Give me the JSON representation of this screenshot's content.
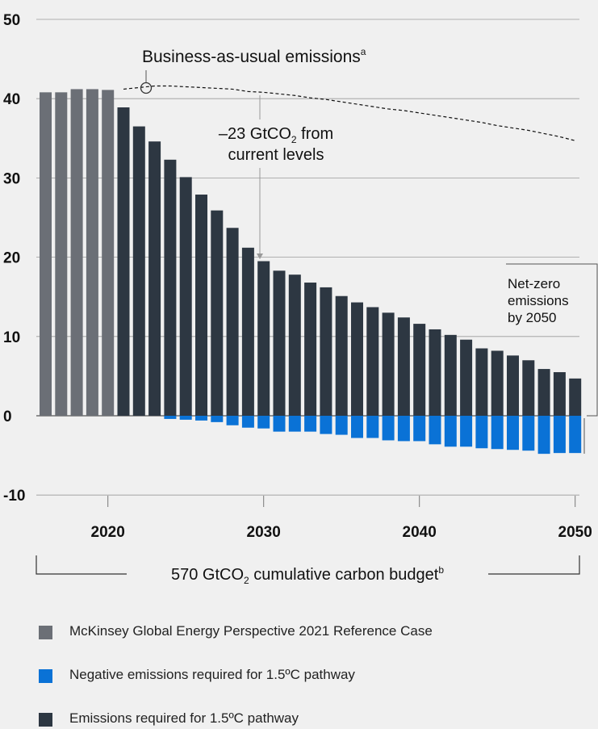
{
  "chart_data": {
    "type": "bar",
    "x_start": 2016,
    "years": [
      2016,
      2017,
      2018,
      2019,
      2020,
      2021,
      2022,
      2023,
      2024,
      2025,
      2026,
      2027,
      2028,
      2029,
      2030,
      2031,
      2032,
      2033,
      2034,
      2035,
      2036,
      2037,
      2038,
      2039,
      2040,
      2041,
      2042,
      2043,
      2044,
      2045,
      2046,
      2047,
      2048,
      2049,
      2050
    ],
    "series": [
      {
        "name": "McKinsey Global Energy Perspective 2021 Reference Case",
        "key": "reference",
        "values": [
          40.8,
          40.8,
          41.2,
          41.2,
          41.1,
          null,
          null,
          null,
          null,
          null,
          null,
          null,
          null,
          null,
          null,
          null,
          null,
          null,
          null,
          null,
          null,
          null,
          null,
          null,
          null,
          null,
          null,
          null,
          null,
          null,
          null,
          null,
          null,
          null,
          null
        ]
      },
      {
        "name": "Emissions required for 1.5ºC pathway",
        "key": "positive",
        "values": [
          null,
          null,
          null,
          null,
          null,
          38.9,
          36.5,
          34.6,
          32.3,
          30.1,
          27.9,
          25.9,
          23.7,
          21.2,
          19.5,
          18.3,
          17.8,
          16.8,
          16.2,
          15.1,
          14.3,
          13.7,
          13.0,
          12.4,
          11.6,
          10.9,
          10.2,
          9.6,
          8.5,
          8.2,
          7.6,
          7.0,
          5.9,
          5.5,
          4.7
        ]
      },
      {
        "name": "Negative emissions required for 1.5ºC pathway",
        "key": "negative",
        "values": [
          null,
          null,
          null,
          null,
          null,
          null,
          null,
          null,
          -0.4,
          -0.5,
          -0.6,
          -0.8,
          -1.2,
          -1.5,
          -1.6,
          -2.0,
          -2.0,
          -2.0,
          -2.3,
          -2.4,
          -2.8,
          -2.8,
          -3.1,
          -3.2,
          -3.2,
          -3.6,
          -3.9,
          -3.9,
          -4.1,
          -4.2,
          -4.3,
          -4.4,
          -4.8,
          -4.7,
          -4.7
        ]
      }
    ],
    "bau_line": {
      "x": [
        2021,
        2022,
        2023,
        2024,
        2025,
        2026,
        2027,
        2028,
        2029,
        2030,
        2031,
        2032,
        2033,
        2034,
        2035,
        2036,
        2037,
        2038,
        2039,
        2040,
        2041,
        2042,
        2043,
        2044,
        2045,
        2046,
        2047,
        2048,
        2049,
        2050
      ],
      "y": [
        41.2,
        41.4,
        41.6,
        41.6,
        41.5,
        41.4,
        41.3,
        41.2,
        40.9,
        40.8,
        40.6,
        40.4,
        40.1,
        39.9,
        39.6,
        39.3,
        39.0,
        38.7,
        38.5,
        38.2,
        37.9,
        37.6,
        37.3,
        37.0,
        36.6,
        36.3,
        36.0,
        35.6,
        35.2,
        34.7
      ]
    },
    "ylim": [
      -10,
      50
    ],
    "y_ticks": [
      "50",
      "40",
      "30",
      "20",
      "10",
      "0",
      "-10"
    ],
    "x_ticks": [
      "2020",
      "2030",
      "2040",
      "2050"
    ],
    "annotations": {
      "bau_main": "Business-as-usual emissions",
      "bau_sup": "a",
      "reduction_pre": "–23 GtCO",
      "reduction_sub": "2",
      "reduction_post": " from",
      "reduction_line2": "current levels",
      "netzero": [
        "Net-zero",
        "emissions",
        "by 2050"
      ],
      "budget_pre": "570 GtCO",
      "budget_sub": "2",
      "budget_post": " cumulative carbon budget",
      "budget_sup": "b"
    },
    "colors": {
      "reference": "#6b6f76",
      "positive": "#2d3742",
      "negative": "#0a72d6",
      "grid": "#9a9a9a",
      "background": "#f0f0f0"
    }
  },
  "legend": [
    {
      "label": "McKinsey Global Energy Perspective 2021 Reference Case",
      "key": "reference"
    },
    {
      "label": "Negative emissions required for 1.5ºC pathway",
      "key": "negative"
    },
    {
      "label": "Emissions required for 1.5ºC pathway",
      "key": "positive"
    }
  ]
}
